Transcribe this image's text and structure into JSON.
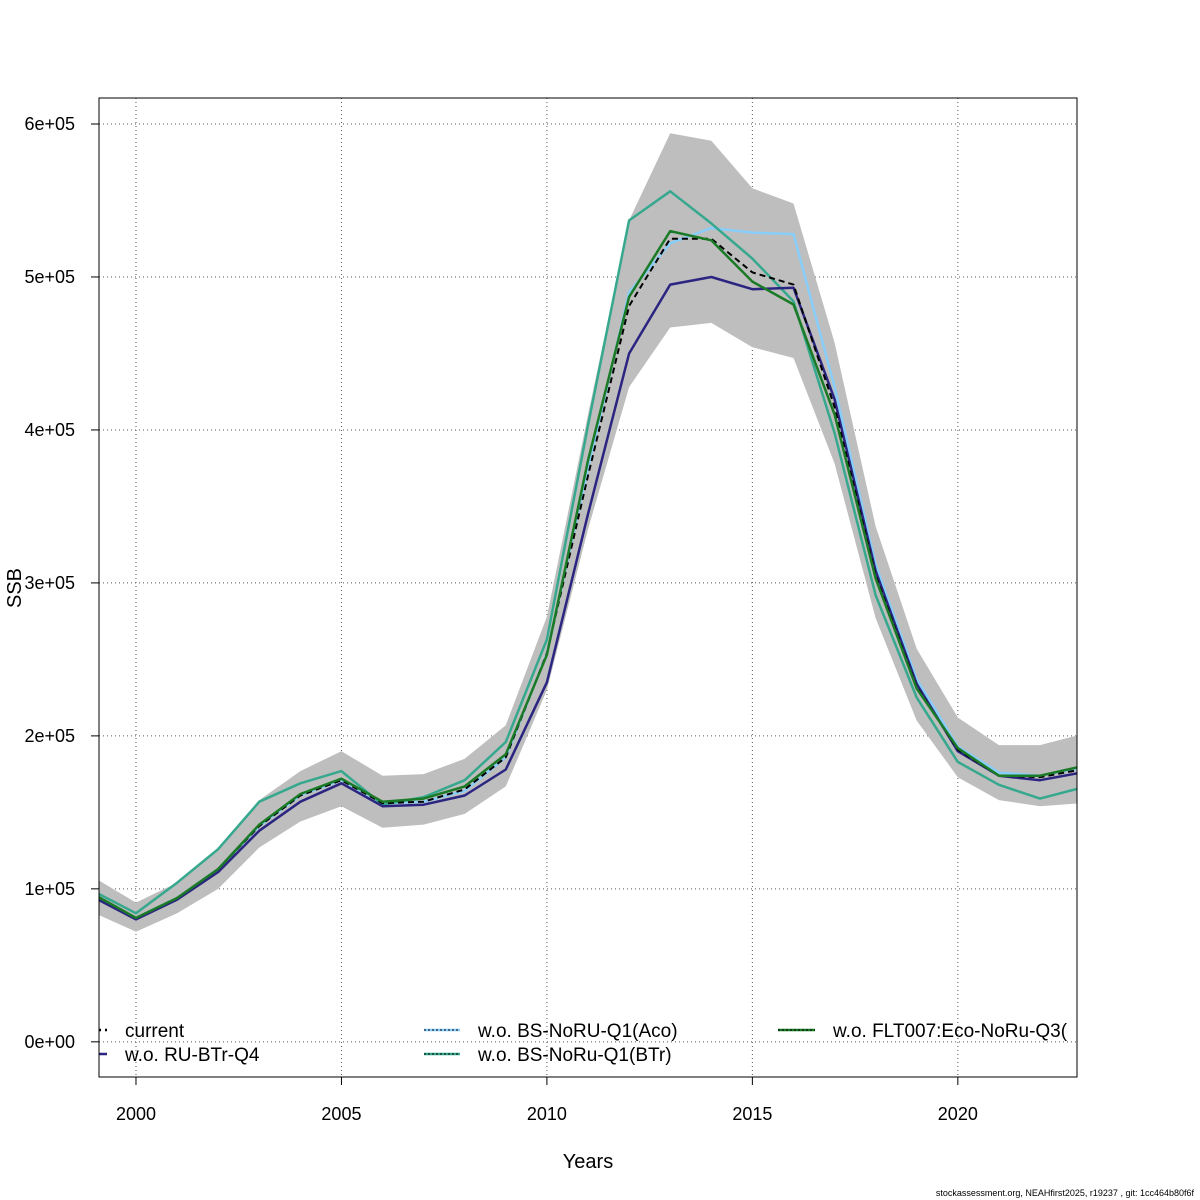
{
  "chart_data": {
    "type": "line",
    "xlabel": "Years",
    "ylabel": "SSB",
    "xlim": [
      1999.1,
      2022.9
    ],
    "ylim": [
      -23000,
      617000
    ],
    "x_ticks": [
      2000,
      2005,
      2010,
      2015,
      2020
    ],
    "x_tick_labels": [
      "2000",
      "2005",
      "2010",
      "2015",
      "2020"
    ],
    "y_ticks": [
      0,
      100000,
      200000,
      300000,
      400000,
      500000,
      600000
    ],
    "y_tick_labels": [
      "0e+00",
      "1e+05",
      "2e+05",
      "3e+05",
      "4e+05",
      "5e+05",
      "6e+05"
    ],
    "grid": true,
    "legend_position": "bottom",
    "x": [
      1999,
      2000,
      2001,
      2002,
      2003,
      2004,
      2005,
      2006,
      2007,
      2008,
      2009,
      2010,
      2011,
      2012,
      2013,
      2014,
      2015,
      2016,
      2017,
      2018,
      2019,
      2020,
      2021,
      2022,
      2023
    ],
    "confidence_band": {
      "color": "#bebebe",
      "lower": [
        84000,
        72000,
        84000,
        100000,
        127000,
        144000,
        154000,
        140000,
        142000,
        149000,
        167000,
        230000,
        335000,
        428000,
        467000,
        470000,
        454000,
        447000,
        378000,
        277000,
        210000,
        173000,
        158000,
        154000,
        156000
      ],
      "upper": [
        107000,
        91000,
        104000,
        125000,
        158000,
        177000,
        190000,
        174000,
        175000,
        185000,
        207000,
        278000,
        410000,
        537000,
        594000,
        589000,
        558000,
        548000,
        457000,
        337000,
        257000,
        212000,
        194000,
        194000,
        201000
      ]
    },
    "series": [
      {
        "name": "current",
        "color": "#000000",
        "dash": "6,4",
        "width": 2,
        "values": [
          96000,
          81000,
          94000,
          113000,
          141000,
          161000,
          171000,
          156000,
          157000,
          165000,
          186000,
          254000,
          370000,
          481000,
          525000,
          525000,
          503000,
          495000,
          415000,
          305000,
          232000,
          191000,
          174000,
          173000,
          178000
        ]
      },
      {
        "name": "w.o. RU-BTr-Q4",
        "color": "#2b2581",
        "dash": "",
        "width": 2.5,
        "values": [
          94000,
          80000,
          93000,
          111000,
          138000,
          157000,
          169000,
          154000,
          155000,
          161000,
          178000,
          235000,
          345000,
          450000,
          495000,
          500000,
          492000,
          493000,
          420000,
          308000,
          234000,
          190000,
          174000,
          171000,
          176000
        ]
      },
      {
        "name": "w.o. BS-NoRU-Q1(Aco)",
        "color": "#87cefa",
        "dash": "",
        "width": 2.5,
        "values": [
          95000,
          81000,
          94000,
          113000,
          141000,
          161000,
          171000,
          156000,
          157000,
          164000,
          186000,
          254000,
          375000,
          490000,
          522000,
          532000,
          529000,
          528000,
          428000,
          312000,
          237000,
          193000,
          176000,
          174000,
          179000
        ]
      },
      {
        "name": "w.o. BS-NoRu-Q1(BTr)",
        "color": "#36a88e",
        "dash": "",
        "width": 2.5,
        "values": [
          98000,
          84000,
          104000,
          126000,
          157000,
          169000,
          177000,
          155000,
          160000,
          171000,
          196000,
          263000,
          403000,
          537000,
          556000,
          535000,
          512000,
          484000,
          398000,
          292000,
          225000,
          183000,
          168000,
          159000,
          166000
        ]
      },
      {
        "name": "w.o. FLT007:Eco-NoRu-Q3(",
        "color": "#1a7a25",
        "dash": "",
        "width": 2.5,
        "values": [
          96000,
          81000,
          94000,
          113000,
          142000,
          162000,
          172000,
          157000,
          159000,
          167000,
          188000,
          253000,
          380000,
          487000,
          530000,
          524000,
          497000,
          482000,
          410000,
          303000,
          231000,
          192000,
          174000,
          174000,
          180000
        ]
      }
    ],
    "legend": {
      "entries": [
        {
          "label": "current",
          "color": "#000000",
          "dash": "6,4",
          "col": 0,
          "row": 0
        },
        {
          "label": "w.o. RU-BTr-Q4",
          "color": "#2b2581",
          "dash": "",
          "col": 0,
          "row": 1
        },
        {
          "label": "w.o. BS-NoRU-Q1(Aco)",
          "color": "#87cefa",
          "dash": "",
          "col": 1,
          "row": 0
        },
        {
          "label": "w.o. BS-NoRu-Q1(BTr)",
          "color": "#36a88e",
          "dash": "",
          "col": 1,
          "row": 1
        },
        {
          "label": "w.o. FLT007:Eco-NoRu-Q3(",
          "color": "#1a7a25",
          "dash": "",
          "col": 2,
          "row": 0
        }
      ]
    }
  },
  "footer": "stockassessment.org, NEAHfirst2025, r19237 , git: 1cc464b80f6f"
}
